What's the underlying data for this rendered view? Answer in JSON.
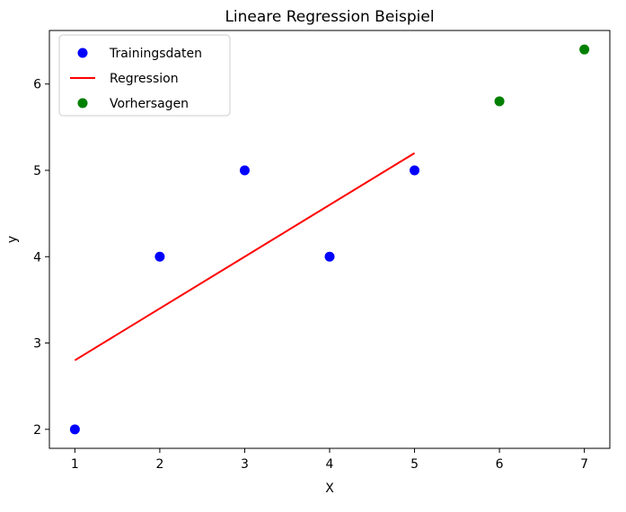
{
  "chart_data": {
    "type": "scatter",
    "title": "Lineare Regression Beispiel",
    "xlabel": "X",
    "ylabel": "y",
    "xlim": [
      0.7,
      7.3
    ],
    "ylim": [
      1.78,
      6.62
    ],
    "xticks": [
      1,
      2,
      3,
      4,
      5,
      6,
      7
    ],
    "yticks": [
      2,
      3,
      4,
      5,
      6
    ],
    "grid": false,
    "legend_position": "top-left",
    "series": [
      {
        "name": "Trainingsdaten",
        "kind": "scatter",
        "color": "#0000ff",
        "x": [
          1,
          2,
          3,
          4,
          5
        ],
        "y": [
          2,
          4,
          5,
          4,
          5
        ]
      },
      {
        "name": "Regression",
        "kind": "line",
        "color": "#ff0000",
        "x": [
          1,
          5
        ],
        "y": [
          2.8,
          5.2
        ]
      },
      {
        "name": "Vorhersagen",
        "kind": "scatter",
        "color": "#008000",
        "x": [
          6,
          7
        ],
        "y": [
          5.8,
          6.4
        ]
      }
    ]
  }
}
